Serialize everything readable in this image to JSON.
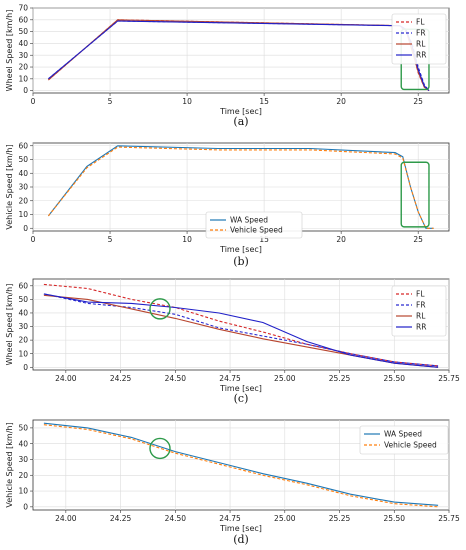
{
  "chart_data": [
    {
      "type": "line",
      "caption": "(a)",
      "xlabel": "Time [sec]",
      "ylabel": "Wheel Speed [km/h]",
      "xlim": [
        0,
        27
      ],
      "ylim": [
        -2,
        70
      ],
      "xticks": [
        0,
        5,
        10,
        15,
        20,
        25
      ],
      "yticks": [
        0,
        10,
        20,
        30,
        40,
        50,
        60,
        70
      ],
      "grid": true,
      "legend_position": "top-right",
      "series": [
        {
          "name": "FL",
          "color": "#d62728",
          "dash": "3,2",
          "x": [
            1.0,
            5.5,
            23.8,
            24.2,
            24.6,
            25.0,
            25.4,
            25.7
          ],
          "y": [
            9,
            60,
            55,
            52,
            35,
            15,
            3,
            0
          ]
        },
        {
          "name": "FR",
          "color": "#2a2ad0",
          "dash": "3,2",
          "x": [
            1.0,
            5.5,
            23.8,
            24.2,
            24.6,
            25.0,
            25.4,
            25.7
          ],
          "y": [
            10,
            59,
            55,
            50,
            40,
            20,
            5,
            0
          ]
        },
        {
          "name": "RL",
          "color": "#b8452e",
          "dash": "",
          "x": [
            1.0,
            5.5,
            23.8,
            24.2,
            24.6,
            25.0,
            25.4,
            25.7
          ],
          "y": [
            9,
            60,
            55,
            51,
            34,
            16,
            3,
            0
          ]
        },
        {
          "name": "RR",
          "color": "#2020c8",
          "dash": "",
          "x": [
            1.0,
            5.5,
            23.8,
            24.2,
            24.6,
            25.0,
            25.4,
            25.7
          ],
          "y": [
            10,
            59,
            55,
            52,
            38,
            18,
            4,
            0
          ]
        }
      ],
      "highlight_box": {
        "x": [
          23.9,
          25.7
        ],
        "y": [
          1,
          52
        ],
        "color": "#2e9a4a"
      }
    },
    {
      "type": "line",
      "caption": "(b)",
      "xlabel": "Time [sec]",
      "ylabel": "Vehicle Speed [km/h]",
      "xlim": [
        0,
        27
      ],
      "ylim": [
        -2,
        62
      ],
      "xticks": [
        0,
        5,
        10,
        15,
        20,
        25
      ],
      "yticks": [
        0,
        10,
        20,
        30,
        40,
        50,
        60
      ],
      "grid": true,
      "legend_position": "lower-center",
      "series": [
        {
          "name": "WA Speed",
          "color": "#1f77b4",
          "dash": "",
          "x": [
            1.0,
            3.5,
            5.5,
            12,
            18,
            23.5,
            24.0,
            24.5,
            25.0,
            25.5,
            26.0
          ],
          "y": [
            9,
            45,
            60,
            58,
            58,
            55,
            52,
            30,
            12,
            0,
            0
          ]
        },
        {
          "name": "Vehicle Speed",
          "color": "#ff7f0e",
          "dash": "3,2",
          "x": [
            1.0,
            3.5,
            5.5,
            12,
            18,
            23.5,
            24.0,
            24.5,
            25.0,
            25.5,
            26.0
          ],
          "y": [
            9,
            44,
            59,
            57,
            57,
            54,
            51,
            30,
            12,
            0,
            0
          ]
        }
      ],
      "highlight_box": {
        "x": [
          23.9,
          25.7
        ],
        "y": [
          1,
          48
        ],
        "color": "#2e9a4a"
      }
    },
    {
      "type": "line",
      "caption": "(c)",
      "xlabel": "Time [sec]",
      "ylabel": "Wheel Speed [km/h]",
      "xlim": [
        23.85,
        25.75
      ],
      "ylim": [
        -2,
        65
      ],
      "xticks": [
        24.0,
        24.25,
        24.5,
        24.75,
        25.0,
        25.25,
        25.5,
        25.75
      ],
      "xtick_labels": [
        "24.00",
        "24.25",
        "24.50",
        "24.75",
        "25.00",
        "25.25",
        "25.50",
        "25.75"
      ],
      "yticks": [
        0,
        10,
        20,
        30,
        40,
        50,
        60
      ],
      "grid": true,
      "legend_position": "top-right",
      "series": [
        {
          "name": "FL",
          "color": "#d62728",
          "dash": "3,2",
          "x": [
            23.9,
            24.1,
            24.3,
            24.5,
            24.7,
            24.9,
            25.1,
            25.3,
            25.5,
            25.7
          ],
          "y": [
            61,
            58,
            50,
            44,
            34,
            26,
            17,
            10,
            4,
            1
          ]
        },
        {
          "name": "FR",
          "color": "#2a2ad0",
          "dash": "3,2",
          "x": [
            23.9,
            24.1,
            24.3,
            24.5,
            24.7,
            24.9,
            25.1,
            25.3,
            25.5,
            25.7
          ],
          "y": [
            54,
            47,
            44,
            39,
            29,
            23,
            17,
            10,
            4,
            1
          ]
        },
        {
          "name": "RL",
          "color": "#b8452e",
          "dash": "",
          "x": [
            23.9,
            24.1,
            24.3,
            24.5,
            24.7,
            24.9,
            25.1,
            25.3,
            25.5,
            25.7
          ],
          "y": [
            53,
            50,
            43,
            36,
            28,
            21,
            15,
            9,
            3,
            0
          ]
        },
        {
          "name": "RR",
          "color": "#2020c8",
          "dash": "",
          "x": [
            23.9,
            24.1,
            24.3,
            24.5,
            24.7,
            24.9,
            25.1,
            25.3,
            25.5,
            25.7
          ],
          "y": [
            54,
            48,
            47,
            44,
            40,
            33,
            19,
            9,
            3,
            0
          ]
        }
      ],
      "highlight_circle": {
        "x": 24.43,
        "y": 43,
        "color": "#2e9a4a"
      }
    },
    {
      "type": "line",
      "caption": "(d)",
      "xlabel": "Time [sec]",
      "ylabel": "Vehicle Speed [km/h]",
      "xlim": [
        23.85,
        25.75
      ],
      "ylim": [
        -2,
        55
      ],
      "xticks": [
        24.0,
        24.25,
        24.5,
        24.75,
        25.0,
        25.25,
        25.5,
        25.75
      ],
      "xtick_labels": [
        "24.00",
        "24.25",
        "24.50",
        "24.75",
        "25.00",
        "25.25",
        "25.50",
        "25.75"
      ],
      "yticks": [
        0,
        10,
        20,
        30,
        40,
        50
      ],
      "grid": true,
      "legend_position": "top-right",
      "series": [
        {
          "name": "WA Speed",
          "color": "#1f77b4",
          "dash": "",
          "x": [
            23.9,
            24.1,
            24.3,
            24.5,
            24.7,
            24.9,
            25.1,
            25.3,
            25.5,
            25.7
          ],
          "y": [
            53,
            50,
            44,
            35,
            28,
            21,
            15,
            8,
            3,
            1
          ]
        },
        {
          "name": "Vehicle Speed",
          "color": "#ff7f0e",
          "dash": "3,2",
          "x": [
            23.9,
            24.1,
            24.3,
            24.5,
            24.7,
            24.9,
            25.1,
            25.3,
            25.5,
            25.7
          ],
          "y": [
            52,
            49,
            43,
            34,
            27,
            20,
            14,
            7,
            2,
            0
          ]
        }
      ],
      "highlight_circle": {
        "x": 24.43,
        "y": 37,
        "color": "#2e9a4a"
      }
    }
  ]
}
